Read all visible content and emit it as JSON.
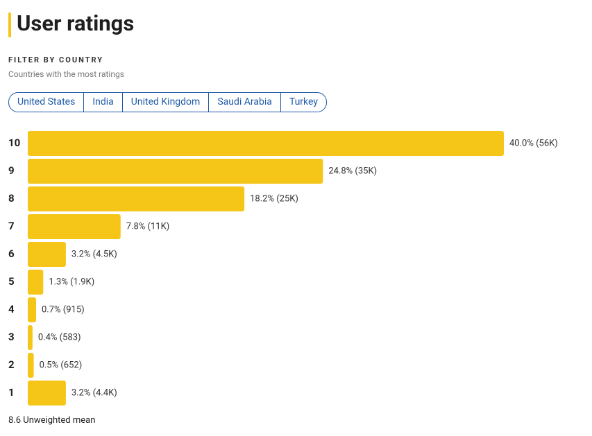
{
  "header": {
    "title": "User ratings"
  },
  "filter": {
    "heading": "FILTER BY COUNTRY",
    "subtitle": "Countries with the most ratings",
    "countries": [
      "United States",
      "India",
      "United Kingdom",
      "Saudi Arabia",
      "Turkey"
    ]
  },
  "chart_data": {
    "type": "bar",
    "orientation": "horizontal",
    "color": "#f5c518",
    "categories": [
      "10",
      "9",
      "8",
      "7",
      "6",
      "5",
      "4",
      "3",
      "2",
      "1"
    ],
    "values": [
      40.0,
      24.8,
      18.2,
      7.8,
      3.2,
      1.3,
      0.7,
      0.4,
      0.5,
      3.2
    ],
    "value_labels": [
      "40.0% (56K)",
      "24.8% (35K)",
      "18.2% (25K)",
      "7.8% (11K)",
      "3.2% (4.5K)",
      "1.3% (1.9K)",
      "0.7% (915)",
      "0.4% (583)",
      "0.5% (652)",
      "3.2% (4.4K)"
    ]
  },
  "footer": {
    "text": "8.6 Unweighted mean"
  }
}
